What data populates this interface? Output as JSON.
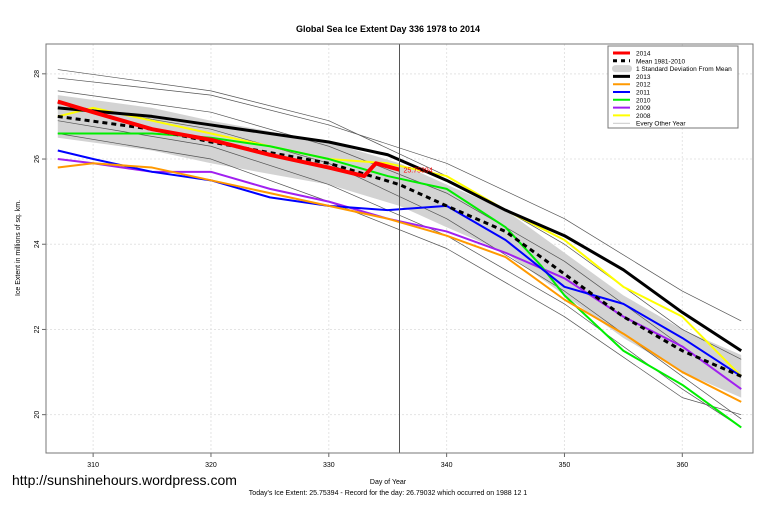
{
  "chart_data": {
    "type": "line",
    "title": "Global Sea Ice Extent Day 336 1978 to 2014",
    "xlabel": "Day of Year",
    "ylabel": "Ice Extent in millions of sq. km.",
    "subtitle": "Today's Ice Extent: 25.75394  - Record for the day: 26.79032 which occurred on 1988 12 1",
    "xlim": [
      306,
      366
    ],
    "ylim": [
      19.1,
      28.7
    ],
    "xticks": [
      310,
      320,
      330,
      340,
      350,
      360
    ],
    "yticks": [
      20,
      22,
      24,
      26,
      28
    ],
    "grid": true,
    "current_day": 336,
    "current_label": "25.75394",
    "legend_position": "top-right",
    "band": {
      "name": "1 Standard Deviation From Mean",
      "color": "#d3d3d3",
      "x": [
        307,
        315,
        320,
        330,
        336,
        340,
        345,
        350,
        355,
        360,
        365
      ],
      "lower": [
        26.5,
        26.2,
        25.9,
        25.4,
        24.9,
        24.4,
        23.8,
        22.8,
        21.8,
        21.0,
        20.4
      ],
      "upper": [
        27.5,
        27.2,
        26.9,
        26.4,
        25.9,
        25.4,
        24.8,
        23.8,
        22.8,
        22.0,
        21.4
      ]
    },
    "series": [
      {
        "name": "2014",
        "color": "#ff0000",
        "width": 4,
        "x": [
          307,
          310,
          315,
          320,
          325,
          330,
          333,
          334,
          336
        ],
        "y": [
          27.35,
          27.1,
          26.7,
          26.45,
          26.1,
          25.8,
          25.6,
          25.9,
          25.75
        ]
      },
      {
        "name": "Mean 1981-2010",
        "color": "#000000",
        "width": 3,
        "dash": true,
        "x": [
          307,
          315,
          320,
          330,
          336,
          340,
          345,
          350,
          355,
          360,
          365
        ],
        "y": [
          27.0,
          26.7,
          26.4,
          25.9,
          25.4,
          24.9,
          24.3,
          23.3,
          22.3,
          21.5,
          20.9
        ]
      },
      {
        "name": "2013",
        "color": "#000000",
        "width": 3,
        "x": [
          307,
          315,
          320,
          325,
          330,
          335,
          340,
          345,
          350,
          355,
          360,
          365
        ],
        "y": [
          27.2,
          27.0,
          26.8,
          26.6,
          26.4,
          26.1,
          25.5,
          24.8,
          24.2,
          23.4,
          22.4,
          21.5
        ]
      },
      {
        "name": "2012",
        "color": "#ff9900",
        "width": 2,
        "x": [
          307,
          310,
          315,
          320,
          325,
          330,
          335,
          340,
          345,
          350,
          355,
          360,
          365
        ],
        "y": [
          25.8,
          25.9,
          25.8,
          25.5,
          25.2,
          24.9,
          24.6,
          24.2,
          23.7,
          22.7,
          21.9,
          21.0,
          20.3
        ]
      },
      {
        "name": "2011",
        "color": "#0000ff",
        "width": 2,
        "x": [
          307,
          310,
          315,
          320,
          325,
          330,
          335,
          340,
          345,
          350,
          355,
          360,
          365
        ],
        "y": [
          26.2,
          26.0,
          25.7,
          25.5,
          25.1,
          24.9,
          24.8,
          24.9,
          24.1,
          23.0,
          22.6,
          21.8,
          20.9
        ]
      },
      {
        "name": "2010",
        "color": "#00ee00",
        "width": 2,
        "x": [
          307,
          310,
          315,
          320,
          325,
          330,
          335,
          340,
          345,
          348,
          350,
          355,
          360,
          365
        ],
        "y": [
          26.6,
          26.6,
          26.6,
          26.5,
          26.3,
          26.0,
          25.6,
          25.3,
          24.4,
          23.5,
          22.8,
          21.5,
          20.7,
          19.7
        ]
      },
      {
        "name": "2009",
        "color": "#a020f0",
        "width": 2,
        "x": [
          307,
          310,
          315,
          320,
          325,
          330,
          335,
          340,
          345,
          350,
          355,
          360,
          365
        ],
        "y": [
          26.0,
          25.9,
          25.7,
          25.7,
          25.3,
          25.0,
          24.6,
          24.3,
          23.8,
          23.2,
          22.3,
          21.6,
          20.6
        ]
      },
      {
        "name": "2008",
        "color": "#ffff00",
        "width": 2,
        "x": [
          307,
          310,
          315,
          320,
          325,
          330,
          335,
          340,
          345,
          350,
          355,
          360,
          365
        ],
        "y": [
          27.0,
          27.2,
          26.9,
          26.6,
          26.3,
          26.0,
          25.9,
          25.6,
          24.8,
          24.1,
          23.0,
          22.3,
          20.9
        ]
      },
      {
        "name": "Every Other Year",
        "color": "#555555",
        "width": 0.7,
        "x": [
          307,
          320,
          330,
          340,
          350,
          360,
          365
        ],
        "y": [
          27.9,
          27.5,
          26.8,
          25.9,
          24.6,
          22.9,
          22.2
        ]
      },
      {
        "color": "#555555",
        "width": 0.7,
        "x": [
          307,
          320,
          330,
          340,
          350,
          360,
          365
        ],
        "y": [
          28.1,
          27.6,
          26.9,
          25.6,
          24.0,
          22.0,
          21.3
        ]
      },
      {
        "color": "#555555",
        "width": 0.7,
        "x": [
          307,
          320,
          330,
          340,
          350,
          360,
          365
        ],
        "y": [
          27.6,
          27.1,
          26.3,
          25.2,
          23.6,
          21.6,
          20.6
        ]
      },
      {
        "color": "#555555",
        "width": 0.7,
        "x": [
          307,
          320,
          330,
          340,
          350,
          360,
          365
        ],
        "y": [
          27.3,
          26.7,
          25.9,
          24.6,
          22.9,
          20.9,
          19.9
        ]
      },
      {
        "color": "#555555",
        "width": 0.7,
        "x": [
          307,
          320,
          330,
          340,
          350,
          360,
          365
        ],
        "y": [
          26.9,
          26.3,
          25.4,
          24.2,
          22.6,
          20.6,
          19.7
        ]
      },
      {
        "color": "#555555",
        "width": 0.7,
        "x": [
          307,
          320,
          330,
          340,
          350,
          360,
          365
        ],
        "y": [
          26.6,
          26.0,
          25.0,
          23.9,
          22.3,
          20.4,
          20.0
        ]
      }
    ]
  },
  "watermark": "http://sunshinehours.wordpress.com"
}
